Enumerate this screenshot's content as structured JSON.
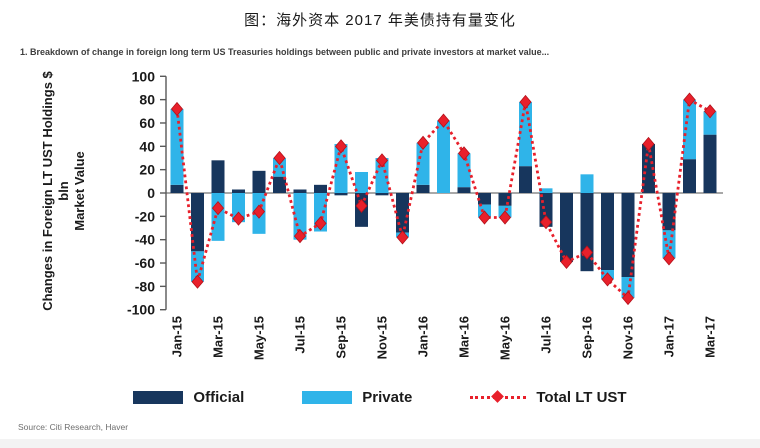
{
  "header": {
    "title": "图：海外资本 2017 年美债持有量变化",
    "subtitle": "1. Breakdown of change in foreign long term US Treasuries holdings between public and private investors at market value..."
  },
  "chart_data": {
    "type": "bar",
    "stacked": true,
    "title": "图：海外资本 2017 年美债持有量变化",
    "ylabel_line1": "Changes in Foreign LT UST Holdings $ bln",
    "ylabel_line2": "Market Value",
    "ylim": [
      -100,
      100
    ],
    "ytick_step": 20,
    "ytick_labels": [
      "100",
      "80",
      "60",
      "40",
      "20",
      "0",
      "-20",
      "-40",
      "-60",
      "-80",
      "-100"
    ],
    "grid": false,
    "legend_position": "bottom",
    "categories": [
      "Jan-15",
      "Feb-15",
      "Mar-15",
      "Apr-15",
      "May-15",
      "Jun-15",
      "Jul-15",
      "Aug-15",
      "Sep-15",
      "Oct-15",
      "Nov-15",
      "Dec-15",
      "Jan-16",
      "Feb-16",
      "Mar-16",
      "Apr-16",
      "May-16",
      "Jun-16",
      "Jul-16",
      "Aug-16",
      "Sep-16",
      "Oct-16",
      "Nov-16",
      "Dec-16",
      "Jan-17",
      "Feb-17",
      "Mar-17"
    ],
    "xtick_labels_shown": [
      "Jan-15",
      "Mar-15",
      "May-15",
      "Jul-15",
      "Sep-15",
      "Nov-15",
      "Jan-16",
      "Mar-16",
      "May-16",
      "Jul-16",
      "Sep-16",
      "Nov-16",
      "Jan-17",
      "Mar-17"
    ],
    "series": [
      {
        "name": "Official",
        "type": "bar",
        "color": "#17365d",
        "values": [
          7,
          -50,
          28,
          3,
          19,
          14,
          3,
          7,
          -2,
          -29,
          -2,
          -34,
          7,
          0,
          5,
          -10,
          -11,
          23,
          -29,
          -59,
          -67,
          -66,
          -72,
          42,
          -32,
          29,
          50
        ]
      },
      {
        "name": "Private",
        "type": "bar",
        "color": "#2fb4e9",
        "values": [
          65,
          -26,
          -41,
          -25,
          -35,
          16,
          -40,
          -33,
          42,
          18,
          30,
          -4,
          36,
          62,
          29,
          -11,
          -10,
          55,
          4,
          0,
          16,
          -8,
          -18,
          0,
          -24,
          51,
          20
        ]
      },
      {
        "name": "Total LT UST",
        "type": "line",
        "line_style": "dotted",
        "marker": "diamond",
        "color": "#e8202b",
        "values": [
          72,
          -76,
          -13,
          -22,
          -16,
          30,
          -37,
          -26,
          40,
          -11,
          28,
          -38,
          43,
          62,
          34,
          -21,
          -21,
          78,
          -25,
          -59,
          -51,
          -74,
          -90,
          42,
          -56,
          80,
          70
        ]
      }
    ]
  },
  "footer": {
    "source": "Source: Citi Research, Haver"
  }
}
